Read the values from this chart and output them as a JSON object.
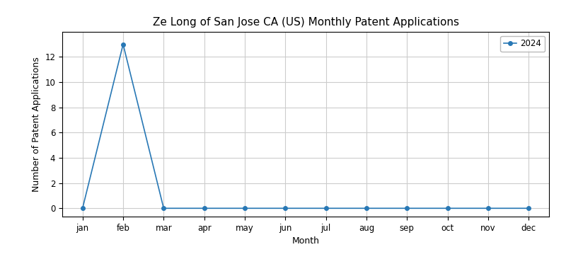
{
  "title": "Ze Long of San Jose CA (US) Monthly Patent Applications",
  "xlabel": "Month",
  "ylabel": "Number of Patent Applications",
  "months": [
    "jan",
    "feb",
    "mar",
    "apr",
    "may",
    "jun",
    "jul",
    "aug",
    "sep",
    "oct",
    "nov",
    "dec"
  ],
  "values_2024": [
    0,
    13,
    0,
    0,
    0,
    0,
    0,
    0,
    0,
    0,
    0,
    0
  ],
  "legend_label": "2024",
  "line_color": "#2878b5",
  "marker": "o",
  "ylim": [
    -0.65,
    14.0
  ],
  "yticks": [
    0,
    2,
    4,
    6,
    8,
    10,
    12
  ],
  "background_color": "#ffffff",
  "grid_color": "#cccccc",
  "title_fontsize": 11,
  "label_fontsize": 9,
  "tick_fontsize": 8.5
}
